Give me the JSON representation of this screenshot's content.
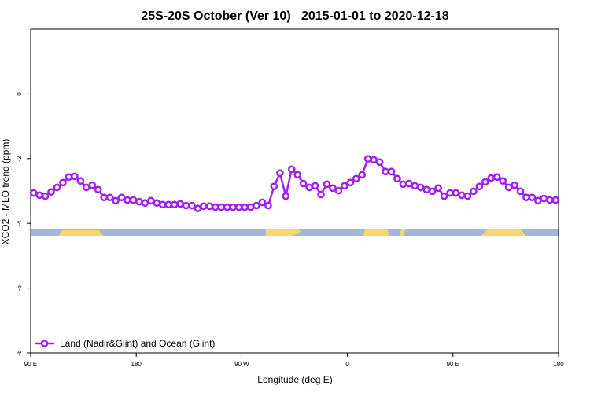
{
  "chart_data": {
    "type": "line",
    "title": "25S-20S October (Ver 10)   2015-01-01 to 2020-12-18",
    "xlabel": "Longitude (deg E)",
    "ylabel": "XCO2 - MLO trend (ppm)",
    "xlim": [
      90,
      540
    ],
    "xticks": [
      {
        "value": 90,
        "label": "90 E"
      },
      180,
      {
        "value": 270,
        "label": "90 W"
      },
      {
        "value": 360,
        "label": "0"
      },
      {
        "value": 450,
        "label": "90 E"
      },
      {
        "value": 540,
        "label": "180"
      }
    ],
    "ylim": [
      -8,
      2
    ],
    "yticks": [
      0,
      -2,
      -4,
      -6,
      -8
    ],
    "legend": "bottom-left",
    "series": [
      {
        "name": "Land (Nadir&Glint) and Ocean (Glint)",
        "color": "#a020f0",
        "x": [
          92.5,
          97.5,
          102.5,
          107.5,
          112.5,
          117.5,
          122.5,
          127.5,
          132.5,
          137.5,
          142.5,
          147.5,
          152.5,
          157.5,
          162.5,
          167.5,
          172.5,
          177.5,
          182.5,
          187.5,
          192.5,
          197.5,
          202.5,
          207.5,
          212.5,
          217.5,
          222.5,
          227.5,
          232.5,
          237.5,
          242.5,
          247.5,
          252.5,
          257.5,
          262.5,
          267.5,
          272.5,
          277.5,
          282.5,
          287.5,
          292.5,
          297.5,
          302.5,
          307.5,
          312.5,
          317.5,
          322.5,
          327.5,
          332.5,
          337.5,
          342.5,
          347.5,
          352.5,
          357.5,
          362.5,
          367.5,
          372.5,
          377.5,
          382.5,
          387.5,
          392.5,
          397.5,
          402.5,
          407.5,
          412.5,
          417.5,
          422.5,
          427.5,
          432.5,
          437.5,
          442.5,
          447.5,
          452.5,
          457.5,
          462.5,
          467.5,
          472.5,
          477.5,
          482.5,
          487.5,
          492.5,
          497.5,
          502.5,
          507.5,
          512.5,
          517.5,
          522.5,
          527.5,
          532.5,
          537.5
        ],
        "values": [
          -3.06,
          -3.13,
          -3.16,
          -3.03,
          -2.89,
          -2.74,
          -2.57,
          -2.55,
          -2.69,
          -2.89,
          -2.82,
          -2.96,
          -3.2,
          -3.2,
          -3.3,
          -3.2,
          -3.28,
          -3.28,
          -3.33,
          -3.37,
          -3.3,
          -3.37,
          -3.42,
          -3.42,
          -3.42,
          -3.4,
          -3.45,
          -3.45,
          -3.54,
          -3.47,
          -3.47,
          -3.5,
          -3.5,
          -3.5,
          -3.5,
          -3.5,
          -3.5,
          -3.5,
          -3.45,
          -3.35,
          -3.45,
          -2.86,
          -2.45,
          -3.16,
          -2.33,
          -2.5,
          -2.77,
          -2.89,
          -2.84,
          -3.11,
          -2.79,
          -2.91,
          -2.99,
          -2.84,
          -2.74,
          -2.62,
          -2.5,
          -2.01,
          -2.04,
          -2.11,
          -2.4,
          -2.4,
          -2.62,
          -2.79,
          -2.77,
          -2.84,
          -2.89,
          -2.96,
          -3.01,
          -2.91,
          -3.16,
          -3.06,
          -3.06,
          -3.13,
          -3.16,
          -3.01,
          -2.86,
          -2.72,
          -2.6,
          -2.57,
          -2.69,
          -2.89,
          -2.82,
          -3.01,
          -3.2,
          -3.2,
          -3.3,
          -3.23,
          -3.28,
          -3.28
        ]
      }
    ]
  }
}
